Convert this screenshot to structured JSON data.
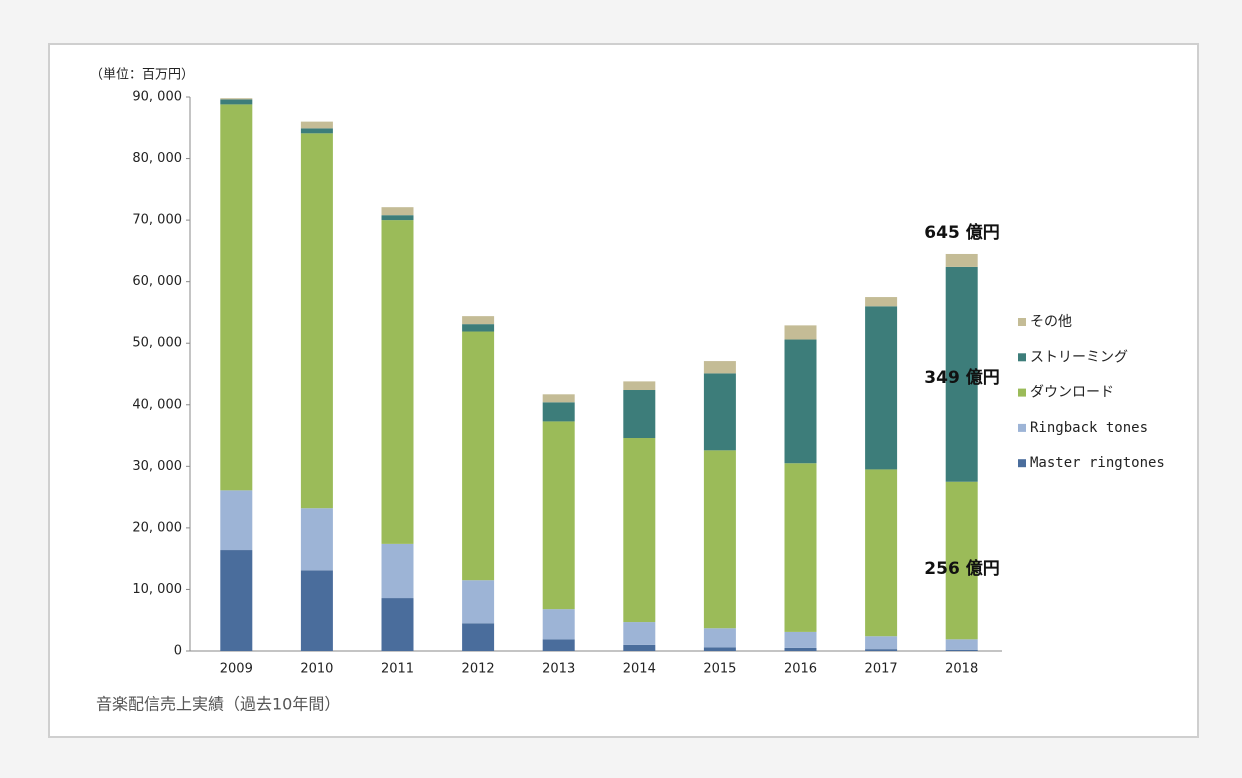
{
  "chart_data": {
    "type": "stacked_bar",
    "unit_label": "（単位：百万円）",
    "caption": "音楽配信売上実績（過去10年間）",
    "categories": [
      "2009",
      "2010",
      "2011",
      "2012",
      "2013",
      "2014",
      "2015",
      "2016",
      "2017",
      "2018"
    ],
    "series": [
      {
        "name": "Master ringtones",
        "color": "#4a6d9c",
        "values": [
          16400,
          13100,
          8600,
          4500,
          1900,
          1000,
          600,
          500,
          300,
          200
        ]
      },
      {
        "name": "Ringback tones",
        "color": "#9db4d6",
        "values": [
          9700,
          10100,
          8800,
          7000,
          4900,
          3700,
          3100,
          2600,
          2100,
          1700
        ]
      },
      {
        "name": "ダウンロード",
        "color": "#9bbb59",
        "values": [
          62700,
          60900,
          52600,
          40400,
          30500,
          29900,
          28900,
          27400,
          27100,
          25600
        ]
      },
      {
        "name": "ストリーミング",
        "color": "#3d7d7a",
        "values": [
          800,
          800,
          800,
          1200,
          3100,
          7800,
          12500,
          20100,
          26500,
          34900
        ]
      },
      {
        "name": "その他",
        "color": "#c4bc96",
        "values": [
          200,
          1100,
          1300,
          1300,
          1300,
          1400,
          2000,
          2300,
          1500,
          2100
        ]
      }
    ],
    "annotations": [
      "645 億円",
      "349 億円",
      "256 億円"
    ],
    "ylim": [
      0,
      90000
    ],
    "yticks": [
      0,
      {
        "value": 10000,
        "label": "10, 000"
      },
      {
        "value": 20000,
        "label": "20, 000"
      },
      {
        "value": 30000,
        "label": "30, 000"
      },
      {
        "value": 40000,
        "label": "40, 000"
      },
      {
        "value": 50000,
        "label": "50, 000"
      },
      {
        "value": 60000,
        "label": "60, 000"
      },
      {
        "value": 70000,
        "label": "70, 000"
      },
      {
        "value": 80000,
        "label": "80, 000"
      },
      {
        "value": 90000,
        "label": "90, 000"
      }
    ],
    "legend": "right"
  }
}
